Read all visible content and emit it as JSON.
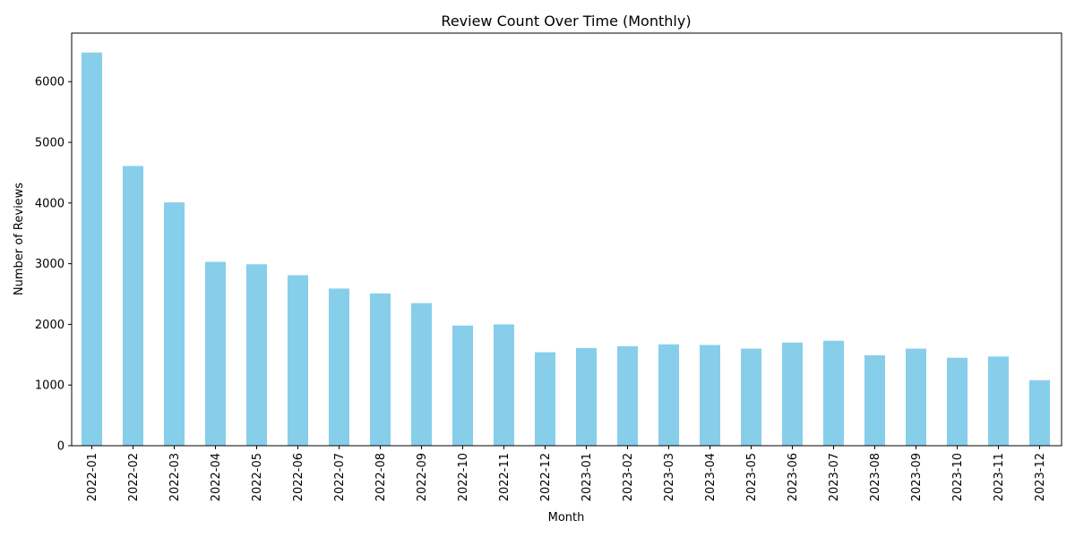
{
  "chart_data": {
    "type": "bar",
    "title": "Review Count Over Time (Monthly)",
    "xlabel": "Month",
    "ylabel": "Number of Reviews",
    "categories": [
      "2022-01",
      "2022-02",
      "2022-03",
      "2022-04",
      "2022-05",
      "2022-06",
      "2022-07",
      "2022-08",
      "2022-09",
      "2022-10",
      "2022-11",
      "2022-12",
      "2023-01",
      "2023-02",
      "2023-03",
      "2023-04",
      "2023-05",
      "2023-06",
      "2023-07",
      "2023-08",
      "2023-09",
      "2023-10",
      "2023-11",
      "2023-12"
    ],
    "values": [
      6480,
      4610,
      4010,
      3030,
      2990,
      2810,
      2590,
      2510,
      2350,
      1980,
      2000,
      1540,
      1610,
      1640,
      1670,
      1660,
      1600,
      1700,
      1730,
      1490,
      1600,
      1450,
      1470,
      1080
    ],
    "ylim": [
      0,
      6800
    ],
    "yticks": [
      0,
      1000,
      2000,
      3000,
      4000,
      5000,
      6000
    ],
    "bar_color": "#87CEEB",
    "grid": false,
    "legend": "none"
  }
}
